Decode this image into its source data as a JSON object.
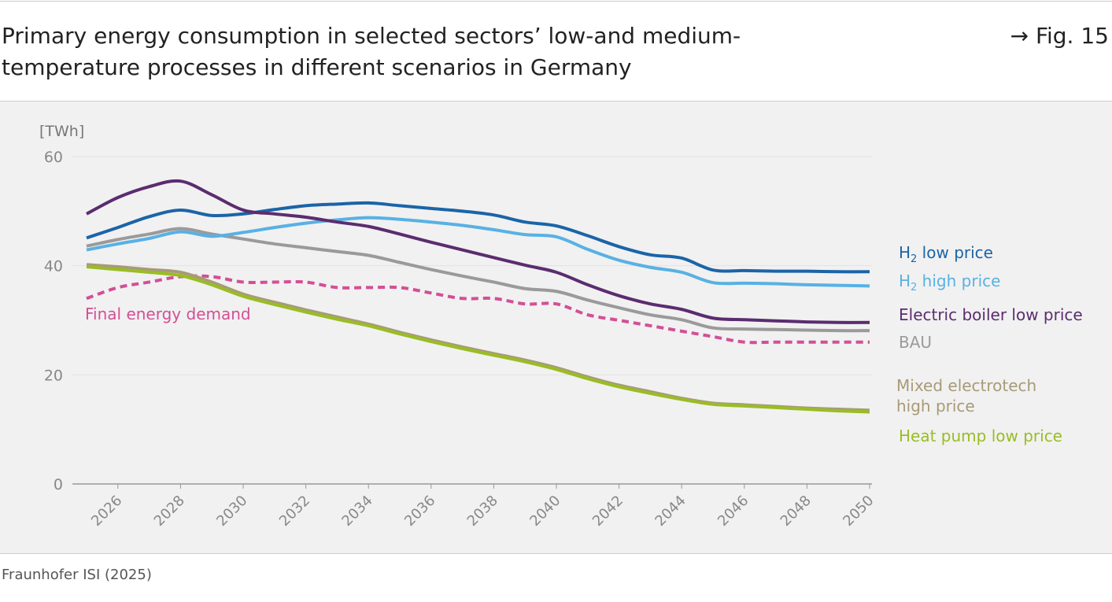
{
  "title": "Primary energy consumption in selected sectors’ low-and medium-temperature processes in different scenarios in Germany",
  "fig_ref": "→ Fig. 15",
  "source": "Fraunhofer ISI (2025)",
  "chart_data": {
    "type": "line",
    "title": "Primary energy consumption in selected sectors’ low-and medium-temperature processes in different scenarios in Germany",
    "ylabel": "[TWh]",
    "xlabel": "",
    "ylim": [
      0,
      60
    ],
    "xlim": [
      2025,
      2050
    ],
    "yticks": [
      0,
      20,
      40,
      60
    ],
    "xticks": [
      2026,
      2028,
      2030,
      2032,
      2034,
      2036,
      2038,
      2040,
      2042,
      2044,
      2046,
      2048,
      2050
    ],
    "grid": "horizontal",
    "legend": "right (inline labels)",
    "x": [
      2025,
      2026,
      2027,
      2028,
      2029,
      2030,
      2031,
      2032,
      2033,
      2034,
      2035,
      2036,
      2037,
      2038,
      2039,
      2040,
      2041,
      2042,
      2043,
      2044,
      2045,
      2046,
      2047,
      2048,
      2049,
      2050
    ],
    "series": [
      {
        "name": "H2 low price",
        "label_main": "H",
        "label_sub": "2",
        "label_rest": " low price",
        "color": "#1b64a8",
        "dashed": false,
        "values": [
          45.1,
          47,
          49,
          50.2,
          49.2,
          49.5,
          50.3,
          51,
          51.3,
          51.5,
          51,
          50.5,
          50,
          49.3,
          48,
          47.3,
          45.5,
          43.5,
          42,
          41.4,
          39.2,
          39.1,
          39,
          39,
          38.9,
          38.9
        ]
      },
      {
        "name": "H2 high price",
        "label_main": "H",
        "label_sub": "2",
        "label_rest": " high price",
        "color": "#58b1e4",
        "dashed": false,
        "values": [
          42.9,
          44,
          45,
          46.2,
          45.4,
          46.1,
          47,
          47.8,
          48.4,
          48.8,
          48.5,
          48,
          47.4,
          46.6,
          45.7,
          45.3,
          43,
          41,
          39.7,
          38.8,
          36.9,
          36.8,
          36.7,
          36.5,
          36.4,
          36.3
        ]
      },
      {
        "name": "Electric boiler low price",
        "color": "#5b2c6f",
        "dashed": false,
        "values": [
          49.5,
          52.5,
          54.5,
          55.5,
          53,
          50.2,
          49.5,
          48.9,
          48,
          47.2,
          45.8,
          44.3,
          42.9,
          41.5,
          40.1,
          38.8,
          36.5,
          34.5,
          33,
          32,
          30.4,
          30.1,
          29.9,
          29.7,
          29.6,
          29.6
        ]
      },
      {
        "name": "BAU",
        "color": "#9a9a9a",
        "dashed": false,
        "values": [
          43.6,
          44.8,
          45.8,
          46.8,
          45.8,
          44.9,
          44,
          43.3,
          42.6,
          41.9,
          40.6,
          39.3,
          38.1,
          37,
          35.8,
          35.3,
          33.7,
          32.3,
          31,
          30.1,
          28.6,
          28.4,
          28.3,
          28.2,
          28.1,
          28.1
        ]
      },
      {
        "name": "Final energy demand",
        "color": "#d34f96",
        "dashed": true,
        "values": [
          34,
          36,
          37,
          38,
          38,
          37,
          37,
          37,
          36,
          36,
          36,
          35,
          34,
          34,
          33,
          33,
          31,
          30,
          29,
          28,
          27,
          26,
          26,
          26,
          26,
          26
        ]
      },
      {
        "name": "Mixed electrotech high price",
        "label_lines": [
          "Mixed electrotech",
          "high price"
        ],
        "color": "#a89a78",
        "dashed": false,
        "values": [
          40.2,
          39.8,
          39.3,
          38.8,
          37,
          34.8,
          33.3,
          31.9,
          30.6,
          29.3,
          27.8,
          26.4,
          25.1,
          23.9,
          22.7,
          21.3,
          19.6,
          18.1,
          16.9,
          15.7,
          14.8,
          14.5,
          14.2,
          13.9,
          13.7,
          13.5
        ]
      },
      {
        "name": "Heat pump low price",
        "color": "#99bd24",
        "dashed": false,
        "values": [
          39.8,
          39.3,
          38.8,
          38.2,
          36.5,
          34.4,
          32.9,
          31.5,
          30.2,
          29,
          27.5,
          26.1,
          24.8,
          23.6,
          22.4,
          21,
          19.3,
          17.8,
          16.6,
          15.5,
          14.6,
          14.3,
          14,
          13.7,
          13.4,
          13.2
        ]
      }
    ]
  }
}
